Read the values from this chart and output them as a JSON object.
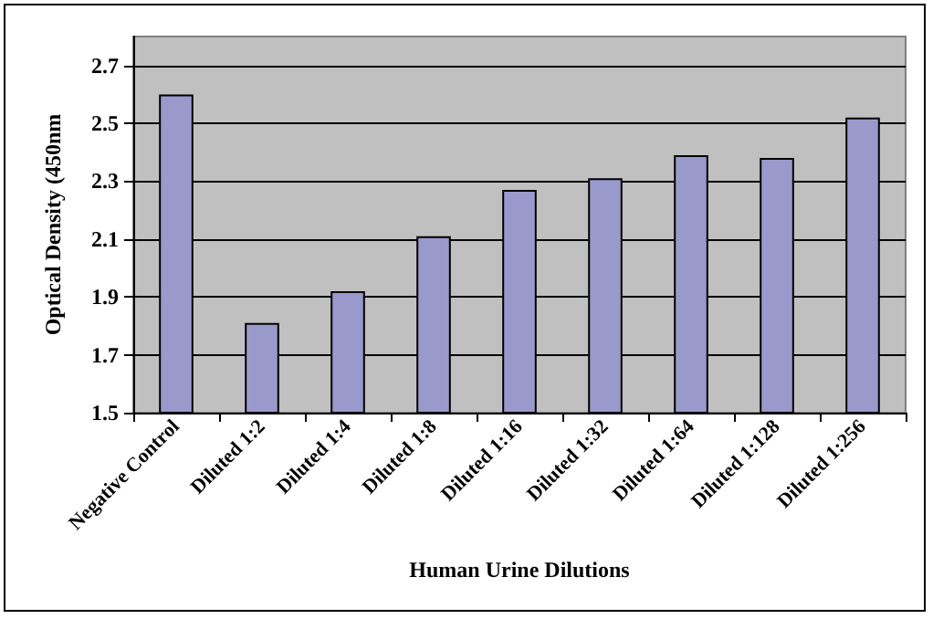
{
  "chart_data": {
    "type": "bar",
    "xlabel": "Human Urine Dilutions",
    "ylabel": "Optical Density (450nm",
    "categories": [
      "Negative Control",
      "Diluted 1:2",
      "Diluted 1:4",
      "Diluted 1:8",
      "Diluted 1:16",
      "Diluted 1:32",
      "Diluted 1:64",
      "Diluted 1:128",
      "Diluted 1:256"
    ],
    "values": [
      2.6,
      1.81,
      1.92,
      2.11,
      2.27,
      2.31,
      2.39,
      2.38,
      2.52
    ],
    "color": "#9999cc",
    "ylim": [
      1.5,
      2.8
    ],
    "yticks": [
      1.5,
      1.7,
      1.9,
      2.1,
      2.3,
      2.5,
      2.7
    ],
    "grid": "y"
  }
}
